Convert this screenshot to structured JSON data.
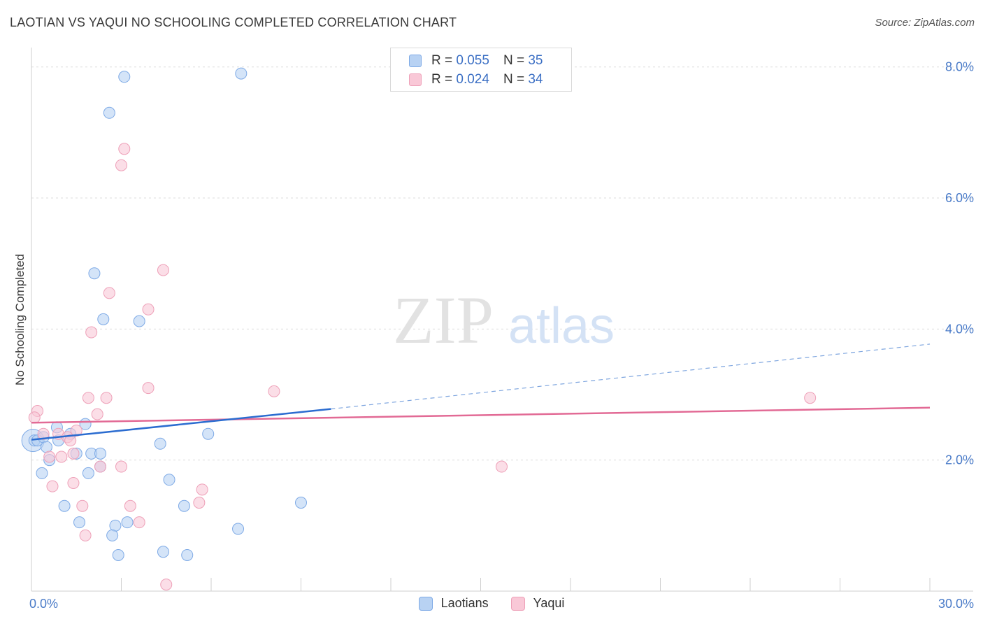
{
  "title": "LAOTIAN VS YAQUI NO SCHOOLING COMPLETED CORRELATION CHART",
  "source": "Source: ZipAtlas.com",
  "watermark": {
    "zip": "ZIP",
    "atlas": "atlas"
  },
  "colors": {
    "laotian_fill": "#b8d2f3",
    "laotian_stroke": "#7eaae6",
    "laotian_line": "#2b6cd0",
    "yaqui_fill": "#f9c8d7",
    "yaqui_stroke": "#eea0b8",
    "yaqui_line": "#e26a95",
    "tick_text": "#4a7bc8",
    "grid": "#dcdcdc"
  },
  "legend": {
    "rows": [
      {
        "r_label": "R = ",
        "r_value": "0.055",
        "n_label": "N = ",
        "n_value": "35"
      },
      {
        "r_label": "R = ",
        "r_value": "0.024",
        "n_label": "N = ",
        "n_value": "34"
      }
    ]
  },
  "chart_data": {
    "type": "scatter",
    "xlabel": "",
    "ylabel": "No Schooling Completed",
    "xlim": [
      0,
      30
    ],
    "ylim": [
      0,
      8.2
    ],
    "x_tick_labels": [
      {
        "value": 0,
        "label": "0.0%"
      },
      {
        "value": 30,
        "label": "30.0%"
      }
    ],
    "y_tick_labels": [
      {
        "value": 2,
        "label": "2.0%"
      },
      {
        "value": 4,
        "label": "4.0%"
      },
      {
        "value": 6,
        "label": "6.0%"
      },
      {
        "value": 8,
        "label": "8.0%"
      }
    ],
    "grid": true,
    "legend_position": "top-center",
    "series": [
      {
        "name": "Laotians",
        "points": [
          [
            3.1,
            7.85
          ],
          [
            7.0,
            7.9
          ],
          [
            2.6,
            7.3
          ],
          [
            2.1,
            4.85
          ],
          [
            2.4,
            4.15
          ],
          [
            3.6,
            4.12
          ],
          [
            0.1,
            2.3
          ],
          [
            0.2,
            2.3
          ],
          [
            0.4,
            2.35
          ],
          [
            0.5,
            2.2
          ],
          [
            0.6,
            2.0
          ],
          [
            0.85,
            2.5
          ],
          [
            0.9,
            2.3
          ],
          [
            1.3,
            2.4
          ],
          [
            1.5,
            2.1
          ],
          [
            1.8,
            2.55
          ],
          [
            2.0,
            2.1
          ],
          [
            2.3,
            1.9
          ],
          [
            2.3,
            2.1
          ],
          [
            4.3,
            2.25
          ],
          [
            5.9,
            2.4
          ],
          [
            0.35,
            1.8
          ],
          [
            1.9,
            1.8
          ],
          [
            4.6,
            1.7
          ],
          [
            1.1,
            1.3
          ],
          [
            5.1,
            1.3
          ],
          [
            9.0,
            1.35
          ],
          [
            1.6,
            1.05
          ],
          [
            2.8,
            1.0
          ],
          [
            3.2,
            1.05
          ],
          [
            6.9,
            0.95
          ],
          [
            2.7,
            0.85
          ],
          [
            2.9,
            0.55
          ],
          [
            4.4,
            0.6
          ],
          [
            5.2,
            0.55
          ]
        ]
      },
      {
        "name": "Yaqui",
        "points": [
          [
            3.1,
            6.75
          ],
          [
            3.0,
            6.5
          ],
          [
            4.4,
            4.9
          ],
          [
            2.6,
            4.55
          ],
          [
            3.9,
            4.3
          ],
          [
            2.0,
            3.95
          ],
          [
            8.1,
            3.05
          ],
          [
            1.9,
            2.95
          ],
          [
            2.5,
            2.95
          ],
          [
            3.9,
            3.1
          ],
          [
            0.2,
            2.75
          ],
          [
            0.1,
            2.65
          ],
          [
            2.2,
            2.7
          ],
          [
            0.4,
            2.4
          ],
          [
            1.5,
            2.45
          ],
          [
            0.9,
            2.4
          ],
          [
            1.2,
            2.35
          ],
          [
            1.3,
            2.3
          ],
          [
            0.6,
            2.05
          ],
          [
            1.0,
            2.05
          ],
          [
            1.4,
            2.1
          ],
          [
            2.3,
            1.9
          ],
          [
            3.0,
            1.9
          ],
          [
            15.7,
            1.9
          ],
          [
            0.7,
            1.6
          ],
          [
            1.4,
            1.65
          ],
          [
            5.7,
            1.55
          ],
          [
            1.7,
            1.3
          ],
          [
            3.3,
            1.3
          ],
          [
            5.6,
            1.35
          ],
          [
            3.6,
            1.05
          ],
          [
            1.8,
            0.85
          ],
          [
            26.0,
            2.95
          ],
          [
            4.5,
            0.1
          ]
        ]
      }
    ],
    "trendlines": [
      {
        "series": "Laotians",
        "solid": [
          [
            0,
            2.31
          ],
          [
            10,
            2.78
          ]
        ],
        "dashed": [
          [
            10,
            2.78
          ],
          [
            30,
            3.77
          ]
        ]
      },
      {
        "series": "Yaqui",
        "solid": [
          [
            0,
            2.57
          ],
          [
            30,
            2.8
          ]
        ]
      }
    ]
  }
}
